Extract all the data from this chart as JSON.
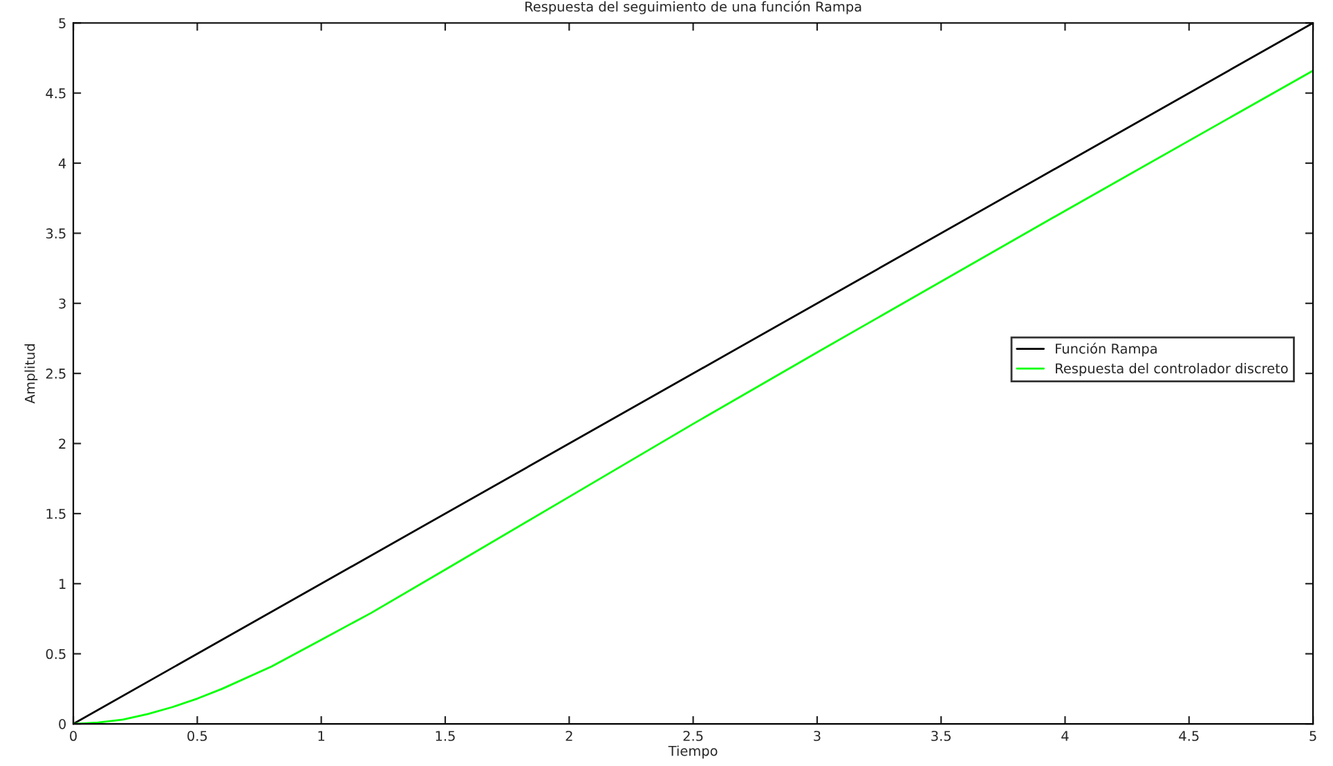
{
  "chart_data": {
    "type": "line",
    "title": "Respuesta del seguimiento de una función Rampa",
    "xlabel": "Tiempo",
    "ylabel": "Amplitud",
    "xlim": [
      0,
      5
    ],
    "ylim": [
      0,
      5
    ],
    "xticks": [
      0,
      0.5,
      1,
      1.5,
      2,
      2.5,
      3,
      3.5,
      4,
      4.5,
      5
    ],
    "yticks": [
      0,
      0.5,
      1,
      1.5,
      2,
      2.5,
      3,
      3.5,
      4,
      4.5,
      5
    ],
    "grid": false,
    "legend": "right",
    "series": [
      {
        "name": "Función Rampa",
        "color": "#000000",
        "x": [
          0,
          5
        ],
        "values": [
          0,
          5
        ]
      },
      {
        "name": "Respuesta del controlador discreto",
        "color": "#00ff00",
        "x": [
          0,
          0.1,
          0.2,
          0.3,
          0.4,
          0.5,
          0.6,
          0.8,
          1,
          1.2,
          1.5,
          2,
          2.5,
          3,
          4,
          5
        ],
        "values": [
          0,
          0.01,
          0.03,
          0.07,
          0.12,
          0.18,
          0.25,
          0.41,
          0.6,
          0.79,
          1.1,
          1.62,
          2.14,
          2.65,
          3.66,
          4.66
        ]
      }
    ]
  }
}
